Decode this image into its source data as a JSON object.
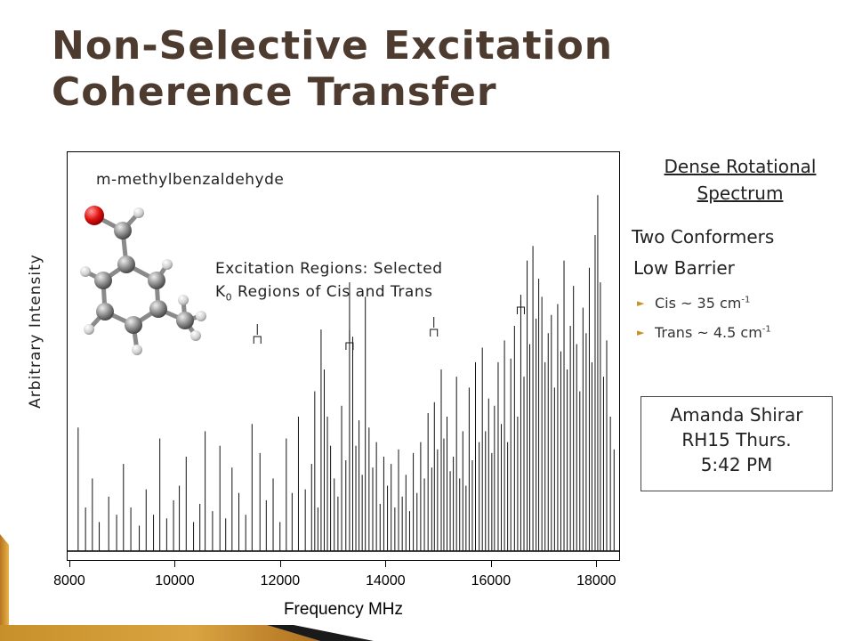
{
  "slide": {
    "title_lines": [
      "Non-Selective Excitation",
      "Coherence Transfer"
    ],
    "molecule_label": "m-methylbenzaldehyde",
    "excitation_line1": "Excitation Regions: Selected",
    "excitation_k": "K",
    "excitation_k_sub": "0",
    "excitation_line2_rest": " Regions of Cis and Trans",
    "side_heading_line1": "Dense Rotational",
    "side_heading_line2": "Spectrum",
    "conformers": "Two Conformers",
    "barrier": "Low Barrier",
    "bullets": [
      {
        "text": "Cis ~ 35 cm",
        "sup": "-1"
      },
      {
        "text": "Trans ~ 4.5 cm",
        "sup": "-1"
      }
    ],
    "presenter": [
      "Amanda Shirar",
      "RH15 Thurs.",
      "5:42 PM"
    ],
    "accent_color": "#c8902a",
    "title_color": "#4e3b30"
  },
  "chart_data": {
    "type": "line",
    "xlabel": "Frequency MHz",
    "ylabel": "Arbitrary Intensity",
    "xlim": [
      7950,
      18450
    ],
    "ylim": [
      0,
      1
    ],
    "xticks": [
      8000,
      10000,
      12000,
      14000,
      16000,
      18000
    ],
    "xtick_labels": [
      "8000",
      "10000",
      "12000",
      "14000",
      "16000",
      "18000"
    ],
    "excitation_markers_mhz": [
      11550,
      13300,
      14900,
      16550
    ],
    "peaks": [
      [
        8150,
        0.34
      ],
      [
        8290,
        0.12
      ],
      [
        8420,
        0.2
      ],
      [
        8550,
        0.08
      ],
      [
        8730,
        0.15
      ],
      [
        8880,
        0.1
      ],
      [
        9010,
        0.24
      ],
      [
        9150,
        0.12
      ],
      [
        9310,
        0.07
      ],
      [
        9440,
        0.17
      ],
      [
        9580,
        0.1
      ],
      [
        9700,
        0.31
      ],
      [
        9830,
        0.09
      ],
      [
        9960,
        0.14
      ],
      [
        10070,
        0.18
      ],
      [
        10200,
        0.26
      ],
      [
        10340,
        0.08
      ],
      [
        10460,
        0.13
      ],
      [
        10560,
        0.33
      ],
      [
        10700,
        0.11
      ],
      [
        10840,
        0.29
      ],
      [
        10950,
        0.09
      ],
      [
        11070,
        0.23
      ],
      [
        11200,
        0.16
      ],
      [
        11330,
        0.1
      ],
      [
        11450,
        0.35
      ],
      [
        11600,
        0.27
      ],
      [
        11720,
        0.14
      ],
      [
        11850,
        0.2
      ],
      [
        11980,
        0.08
      ],
      [
        12100,
        0.31
      ],
      [
        12210,
        0.16
      ],
      [
        12330,
        0.37
      ],
      [
        12460,
        0.17
      ],
      [
        12580,
        0.24
      ],
      [
        12640,
        0.44
      ],
      [
        12700,
        0.12
      ],
      [
        12760,
        0.61
      ],
      [
        12820,
        0.5
      ],
      [
        12880,
        0.37
      ],
      [
        12940,
        0.29
      ],
      [
        13010,
        0.2
      ],
      [
        13080,
        0.15
      ],
      [
        13150,
        0.4
      ],
      [
        13230,
        0.25
      ],
      [
        13300,
        0.74
      ],
      [
        13360,
        0.59
      ],
      [
        13420,
        0.29
      ],
      [
        13480,
        0.36
      ],
      [
        13540,
        0.21
      ],
      [
        13600,
        0.7
      ],
      [
        13670,
        0.34
      ],
      [
        13740,
        0.23
      ],
      [
        13810,
        0.3
      ],
      [
        13880,
        0.13
      ],
      [
        13950,
        0.26
      ],
      [
        14020,
        0.18
      ],
      [
        14090,
        0.24
      ],
      [
        14160,
        0.12
      ],
      [
        14230,
        0.28
      ],
      [
        14300,
        0.15
      ],
      [
        14370,
        0.21
      ],
      [
        14440,
        0.11
      ],
      [
        14510,
        0.27
      ],
      [
        14580,
        0.16
      ],
      [
        14650,
        0.3
      ],
      [
        14720,
        0.2
      ],
      [
        14790,
        0.38
      ],
      [
        14860,
        0.23
      ],
      [
        14910,
        0.41
      ],
      [
        14970,
        0.28
      ],
      [
        15040,
        0.5
      ],
      [
        15090,
        0.31
      ],
      [
        15150,
        0.37
      ],
      [
        15210,
        0.22
      ],
      [
        15270,
        0.26
      ],
      [
        15330,
        0.48
      ],
      [
        15390,
        0.2
      ],
      [
        15450,
        0.33
      ],
      [
        15510,
        0.18
      ],
      [
        15570,
        0.45
      ],
      [
        15630,
        0.25
      ],
      [
        15690,
        0.52
      ],
      [
        15760,
        0.3
      ],
      [
        15820,
        0.56
      ],
      [
        15880,
        0.33
      ],
      [
        15940,
        0.42
      ],
      [
        16000,
        0.27
      ],
      [
        16050,
        0.4
      ],
      [
        16120,
        0.52
      ],
      [
        16180,
        0.35
      ],
      [
        16240,
        0.58
      ],
      [
        16300,
        0.3
      ],
      [
        16360,
        0.53
      ],
      [
        16430,
        0.62
      ],
      [
        16490,
        0.37
      ],
      [
        16550,
        0.69
      ],
      [
        16610,
        0.48
      ],
      [
        16670,
        0.8
      ],
      [
        16720,
        0.57
      ],
      [
        16780,
        0.84
      ],
      [
        16840,
        0.64
      ],
      [
        16890,
        0.75
      ],
      [
        16950,
        0.7
      ],
      [
        17010,
        0.52
      ],
      [
        17070,
        0.6
      ],
      [
        17130,
        0.65
      ],
      [
        17190,
        0.45
      ],
      [
        17250,
        0.68
      ],
      [
        17310,
        0.55
      ],
      [
        17370,
        0.8
      ],
      [
        17430,
        0.5
      ],
      [
        17490,
        0.62
      ],
      [
        17550,
        0.73
      ],
      [
        17610,
        0.57
      ],
      [
        17670,
        0.44
      ],
      [
        17730,
        0.67
      ],
      [
        17790,
        0.6
      ],
      [
        17850,
        0.78
      ],
      [
        17900,
        0.52
      ],
      [
        17960,
        0.87
      ],
      [
        18010,
        0.98
      ],
      [
        18060,
        0.74
      ],
      [
        18120,
        0.48
      ],
      [
        18180,
        0.58
      ],
      [
        18250,
        0.37
      ],
      [
        18320,
        0.28
      ]
    ]
  }
}
